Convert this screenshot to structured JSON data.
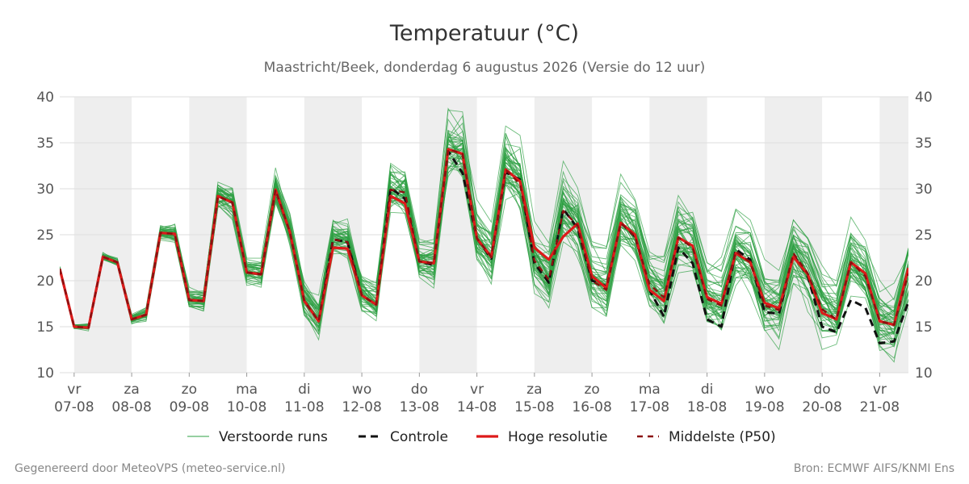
{
  "page": {
    "footer_left": "Gegenereerd door MeteoVPS (meteo-service.nl)",
    "footer_right": "Bron: ECMWF AIFS/KNMI Ens"
  },
  "chart_data": {
    "type": "line",
    "title": "Temperatuur (°C)",
    "subtitle": "Maastricht/Beek, donderdag  6 augustus 2026 (Versie do 12 uur)",
    "ylim": [
      10,
      40
    ],
    "yticks": [
      10,
      15,
      20,
      25,
      30,
      35,
      40
    ],
    "xlim": [
      -0.25,
      14.5
    ],
    "grid": true,
    "legend_position": "bottom",
    "day_ticks": [
      {
        "pos": 0,
        "weekday": "vr",
        "date": "07-08"
      },
      {
        "pos": 1,
        "weekday": "za",
        "date": "08-08"
      },
      {
        "pos": 2,
        "weekday": "zo",
        "date": "09-08"
      },
      {
        "pos": 3,
        "weekday": "ma",
        "date": "10-08"
      },
      {
        "pos": 4,
        "weekday": "di",
        "date": "11-08"
      },
      {
        "pos": 5,
        "weekday": "wo",
        "date": "12-08"
      },
      {
        "pos": 6,
        "weekday": "do",
        "date": "13-08"
      },
      {
        "pos": 7,
        "weekday": "vr",
        "date": "14-08"
      },
      {
        "pos": 8,
        "weekday": "za",
        "date": "15-08"
      },
      {
        "pos": 9,
        "weekday": "zo",
        "date": "16-08"
      },
      {
        "pos": 10,
        "weekday": "ma",
        "date": "17-08"
      },
      {
        "pos": 11,
        "weekday": "di",
        "date": "18-08"
      },
      {
        "pos": 12,
        "weekday": "wo",
        "date": "19-08"
      },
      {
        "pos": 13,
        "weekday": "do",
        "date": "20-08"
      },
      {
        "pos": 14,
        "weekday": "vr",
        "date": "21-08"
      }
    ],
    "shaded_days": [
      [
        0,
        1
      ],
      [
        2,
        3
      ],
      [
        4,
        5
      ],
      [
        6,
        7
      ],
      [
        8,
        9
      ],
      [
        10,
        11
      ],
      [
        12,
        13
      ],
      [
        14,
        14.5
      ]
    ],
    "colors": {
      "ensemble": "#2ea043",
      "control": "#111111",
      "high_res": "#dd1a1a",
      "median": "#8b1010",
      "shade": "#eeeeee",
      "grid": "#dddddd"
    },
    "legend": [
      {
        "key": "ensemble",
        "label": "Verstoorde runs"
      },
      {
        "key": "control",
        "label": "Controle"
      },
      {
        "key": "high_res",
        "label": "Hoge resolutie"
      },
      {
        "key": "median",
        "label": "Middelste (P50)"
      }
    ],
    "x": [
      -0.25,
      0,
      0.25,
      0.5,
      0.75,
      1,
      1.25,
      1.5,
      1.75,
      2,
      2.25,
      2.5,
      2.75,
      3,
      3.25,
      3.5,
      3.75,
      4,
      4.25,
      4.5,
      4.75,
      5,
      5.25,
      5.5,
      5.75,
      6,
      6.25,
      6.5,
      6.75,
      7,
      7.25,
      7.5,
      7.75,
      8,
      8.25,
      8.5,
      8.75,
      9,
      9.25,
      9.5,
      9.75,
      10,
      10.25,
      10.5,
      10.75,
      11,
      11.25,
      11.5,
      11.75,
      12,
      12.25,
      12.5,
      12.75,
      13,
      13.25,
      13.5,
      13.75,
      14,
      14.25,
      14.5
    ],
    "series": [
      {
        "name": "Controle",
        "key": "control",
        "values": [
          21.3,
          15.0,
          14.9,
          22.6,
          22.0,
          15.8,
          16.3,
          25.2,
          25.1,
          17.9,
          17.8,
          29.2,
          28.5,
          20.9,
          20.7,
          29.8,
          25.3,
          17.8,
          15.6,
          24.5,
          24.2,
          18.4,
          17.4,
          30.1,
          28.9,
          22.1,
          21.7,
          34.1,
          31.7,
          24.6,
          22.4,
          31.8,
          31.0,
          21.9,
          19.8,
          27.8,
          25.7,
          20.0,
          19.4,
          26.3,
          24.8,
          19.0,
          16.1,
          23.6,
          21.9,
          15.8,
          15.0,
          23.4,
          22.3,
          16.6,
          16.4,
          22.8,
          20.5,
          15.0,
          14.4,
          17.9,
          17.1,
          13.2,
          13.4,
          17.7
        ]
      },
      {
        "name": "Hoge resolutie",
        "key": "high_res",
        "values": [
          21.3,
          15.0,
          14.9,
          22.6,
          22.0,
          15.8,
          16.3,
          25.2,
          25.1,
          17.9,
          17.8,
          29.2,
          28.5,
          20.9,
          20.7,
          29.9,
          25.3,
          17.8,
          15.6,
          23.6,
          23.5,
          18.4,
          17.4,
          29.2,
          28.4,
          22.1,
          21.9,
          34.3,
          33.8,
          24.6,
          22.6,
          32.1,
          30.8,
          23.6,
          22.3,
          24.8,
          26.2,
          20.5,
          19.2,
          26.3,
          25.0,
          19.0,
          17.8,
          24.7,
          23.8,
          18.2,
          17.5,
          23.0,
          22.0,
          17.6,
          17.0,
          22.6,
          20.7,
          16.5,
          15.8,
          22.0,
          20.8,
          15.6,
          15.2,
          21.4
        ]
      },
      {
        "name": "Middelste (P50)",
        "key": "median",
        "values": [
          21.3,
          15.0,
          14.9,
          22.6,
          22.0,
          15.8,
          16.3,
          25.2,
          25.1,
          17.9,
          17.8,
          29.2,
          28.5,
          20.9,
          20.7,
          29.9,
          25.3,
          17.8,
          15.6,
          24.5,
          24.2,
          18.4,
          17.4,
          29.9,
          29.6,
          22.1,
          21.9,
          34.3,
          33.8,
          24.6,
          22.6,
          32.1,
          30.5,
          22.2,
          20.1,
          27.6,
          26.0,
          20.0,
          19.0,
          26.3,
          24.8,
          19.6,
          18.2,
          24.7,
          23.6,
          18.0,
          17.3,
          23.2,
          22.0,
          17.3,
          16.8,
          23.0,
          20.8,
          16.9,
          15.8,
          22.0,
          20.5,
          15.6,
          15.2,
          20.8
        ]
      }
    ],
    "ensemble": {
      "members": 50,
      "center_series": "Middelste (P50)",
      "spread_at_start": 0.3,
      "spread_growth_per_day": 0.55,
      "max_spread": 5.0,
      "seed": 7
    }
  }
}
